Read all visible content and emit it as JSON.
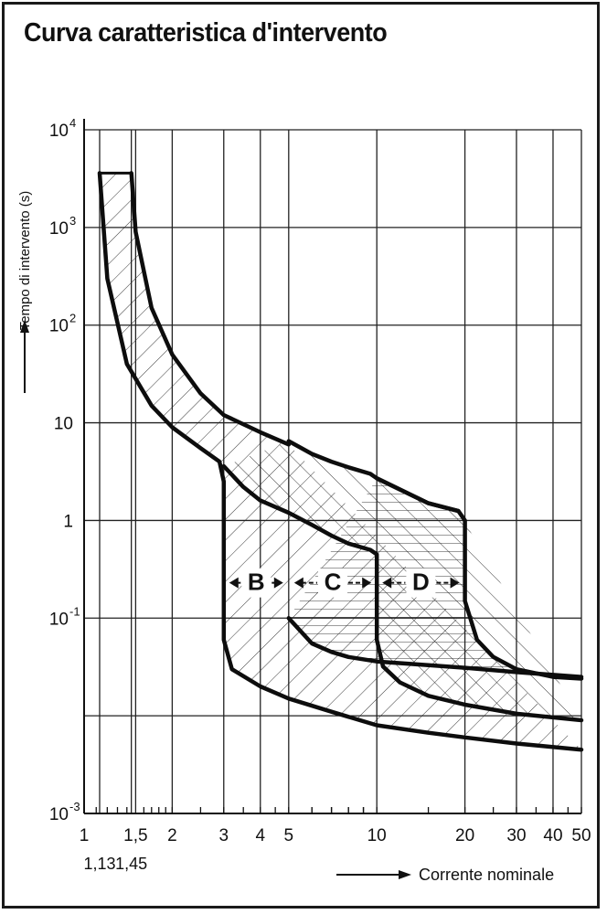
{
  "title": "Curva caratteristica d'intervento",
  "chart_data": {
    "type": "area",
    "title": "Curva caratteristica d'intervento",
    "xlabel": "Corrente nominale",
    "ylabel": "Tempo di intervento (s)",
    "x_scale": "log",
    "y_scale": "log",
    "xlim": [
      1,
      50
    ],
    "ylim": [
      0.001,
      10000
    ],
    "grid": true,
    "x_tick_labels": [
      {
        "value": 1,
        "label": "1"
      },
      {
        "value": 1.5,
        "label": "1,5"
      },
      {
        "value": 2,
        "label": "2"
      },
      {
        "value": 3,
        "label": "3"
      },
      {
        "value": 4,
        "label": "4"
      },
      {
        "value": 5,
        "label": "5"
      },
      {
        "value": 10,
        "label": "10"
      },
      {
        "value": 20,
        "label": "20"
      },
      {
        "value": 30,
        "label": "30"
      },
      {
        "value": 40,
        "label": "40"
      },
      {
        "value": 50,
        "label": "50"
      }
    ],
    "x_secondary_labels": [
      {
        "value": 1.13,
        "label": "1,13"
      },
      {
        "value": 1.45,
        "label": "1,45"
      }
    ],
    "y_tick_labels": [
      {
        "value": 0.001,
        "base": "10",
        "exp": "-3"
      },
      {
        "value": 0.1,
        "base": "10",
        "exp": "-1"
      },
      {
        "value": 1,
        "base": "1",
        "exp": ""
      },
      {
        "value": 10,
        "base": "10",
        "exp": ""
      },
      {
        "value": 100,
        "base": "10",
        "exp": "2"
      },
      {
        "value": 1000,
        "base": "10",
        "exp": "3"
      },
      {
        "value": 10000,
        "base": "10",
        "exp": "4"
      }
    ],
    "series": [
      {
        "name": "B",
        "label_y": 0.23,
        "label_range": [
          3,
          5
        ],
        "upper": [
          [
            1.45,
            3600
          ],
          [
            1.5,
            900
          ],
          [
            1.7,
            150
          ],
          [
            2,
            50
          ],
          [
            2.5,
            20
          ],
          [
            3,
            12
          ],
          [
            4,
            8
          ],
          [
            5,
            6
          ]
        ],
        "lower": [
          [
            1.13,
            3600
          ],
          [
            1.2,
            300
          ],
          [
            1.4,
            40
          ],
          [
            1.7,
            15
          ],
          [
            2,
            9
          ],
          [
            2.5,
            5.5
          ],
          [
            2.9,
            4
          ],
          [
            3,
            2.5
          ],
          [
            3,
            0.06
          ],
          [
            3.2,
            0.03
          ],
          [
            4,
            0.02
          ],
          [
            5,
            0.015
          ],
          [
            7,
            0.011
          ],
          [
            10,
            0.008
          ],
          [
            15,
            0.0067
          ],
          [
            20,
            0.006
          ],
          [
            30,
            0.0052
          ],
          [
            50,
            0.0045
          ]
        ]
      },
      {
        "name": "C",
        "label_y": 0.23,
        "label_range": [
          5,
          10
        ],
        "upper": [
          [
            5,
            6.5
          ],
          [
            6,
            4.8
          ],
          [
            7,
            4
          ],
          [
            8,
            3.5
          ],
          [
            9.5,
            3
          ],
          [
            10,
            2.7
          ],
          [
            15,
            1.5
          ],
          [
            19,
            1.25
          ]
        ],
        "lower": [
          [
            3,
            3.6
          ],
          [
            3.5,
            2.2
          ],
          [
            4,
            1.6
          ],
          [
            5,
            1.2
          ],
          [
            6,
            0.9
          ],
          [
            7,
            0.7
          ],
          [
            8,
            0.58
          ],
          [
            9.5,
            0.5
          ],
          [
            10,
            0.45
          ],
          [
            10,
            0.06
          ],
          [
            10.5,
            0.032
          ],
          [
            12,
            0.022
          ],
          [
            15,
            0.016
          ],
          [
            20,
            0.013
          ],
          [
            30,
            0.0105
          ],
          [
            50,
            0.009
          ]
        ]
      },
      {
        "name": "D",
        "label_y": 0.23,
        "label_range": [
          10,
          20
        ],
        "upper": [
          [
            10,
            2.7
          ],
          [
            15,
            1.5
          ],
          [
            19,
            1.25
          ],
          [
            20,
            1
          ],
          [
            20,
            0.15
          ],
          [
            22,
            0.06
          ],
          [
            25,
            0.04
          ],
          [
            30,
            0.03
          ],
          [
            40,
            0.025
          ],
          [
            50,
            0.024
          ]
        ],
        "lower": [
          [
            5,
            0.1
          ],
          [
            6,
            0.055
          ],
          [
            7,
            0.045
          ],
          [
            8,
            0.04
          ],
          [
            10,
            0.036
          ],
          [
            15,
            0.033
          ],
          [
            20,
            0.031
          ],
          [
            30,
            0.028
          ],
          [
            50,
            0.025
          ]
        ]
      }
    ]
  }
}
